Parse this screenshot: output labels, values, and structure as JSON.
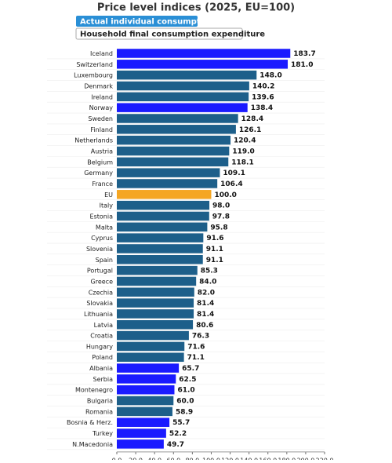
{
  "chart_data": {
    "type": "bar",
    "orientation": "horizontal",
    "title": "Price level indices (2025, EU=100)",
    "toggles": [
      "Actual individual consumption",
      "Household final consumption expenditure"
    ],
    "categories": [
      "Iceland",
      "Switzerland",
      "Luxembourg",
      "Denmark",
      "Ireland",
      "Norway",
      "Sweden",
      "Finland",
      "Netherlands",
      "Austria",
      "Belgium",
      "Germany",
      "France",
      "EU",
      "Italy",
      "Estonia",
      "Malta",
      "Cyprus",
      "Slovenia",
      "Spain",
      "Portugal",
      "Greece",
      "Czechia",
      "Slovakia",
      "Lithuania",
      "Latvia",
      "Croatia",
      "Hungary",
      "Poland",
      "Albania",
      "Serbia",
      "Montenegro",
      "Bulgaria",
      "Romania",
      "Bosnia & Herz.",
      "Turkey",
      "N.Macedonia"
    ],
    "values": [
      183.7,
      181.0,
      148.0,
      140.2,
      139.6,
      138.4,
      128.4,
      126.1,
      120.4,
      119.0,
      118.1,
      109.1,
      106.4,
      100.0,
      98.0,
      97.8,
      95.8,
      91.6,
      91.1,
      91.1,
      85.3,
      84.0,
      82.0,
      81.4,
      81.4,
      80.6,
      76.3,
      71.6,
      71.1,
      65.7,
      62.5,
      61.0,
      60.0,
      58.9,
      55.7,
      52.2,
      49.7
    ],
    "value_labels": [
      "183.7",
      "181.0",
      "148.0",
      "140.2",
      "139.6",
      "138.4",
      "128.4",
      "126.1",
      "120.4",
      "119.0",
      "118.1",
      "109.1",
      "106.4",
      "100.0",
      "98.0",
      "97.8",
      "95.8",
      "91.6",
      "91.1",
      "91.1",
      "85.3",
      "84.0",
      "82.0",
      "81.4",
      "81.4",
      "80.6",
      "76.3",
      "71.6",
      "71.1",
      "65.7",
      "62.5",
      "61.0",
      "60.0",
      "58.9",
      "55.7",
      "52.2",
      "49.7"
    ],
    "colors": [
      "#1a1aff",
      "#1a1aff",
      "#1d5f8a",
      "#1d5f8a",
      "#1d5f8a",
      "#1a1aff",
      "#1d5f8a",
      "#1d5f8a",
      "#1d5f8a",
      "#1d5f8a",
      "#1d5f8a",
      "#1d5f8a",
      "#1d5f8a",
      "#f5a623",
      "#1d5f8a",
      "#1d5f8a",
      "#1d5f8a",
      "#1d5f8a",
      "#1d5f8a",
      "#1d5f8a",
      "#1d5f8a",
      "#1d5f8a",
      "#1d5f8a",
      "#1d5f8a",
      "#1d5f8a",
      "#1d5f8a",
      "#1d5f8a",
      "#1d5f8a",
      "#1d5f8a",
      "#1a1aff",
      "#1a1aff",
      "#1a1aff",
      "#1d5f8a",
      "#1d5f8a",
      "#1a1aff",
      "#1a1aff",
      "#1a1aff"
    ],
    "xlim": [
      0,
      220
    ],
    "xticks": [
      {
        "value": 0,
        "label": "0.0"
      },
      {
        "value": 20,
        "label": "20.0"
      },
      {
        "value": 40,
        "label": "40.0"
      },
      {
        "value": 60,
        "label": "60.0"
      },
      {
        "value": 80,
        "label": "80.0"
      },
      {
        "value": 100,
        "label": "100.0"
      },
      {
        "value": 120,
        "label": "120.0"
      },
      {
        "value": 140,
        "label": "140.0"
      },
      {
        "value": 160,
        "label": "160.0"
      },
      {
        "value": 180,
        "label": "180.0"
      },
      {
        "value": 200,
        "label": "200.0"
      },
      {
        "value": 220,
        "label": "220.0"
      }
    ]
  }
}
